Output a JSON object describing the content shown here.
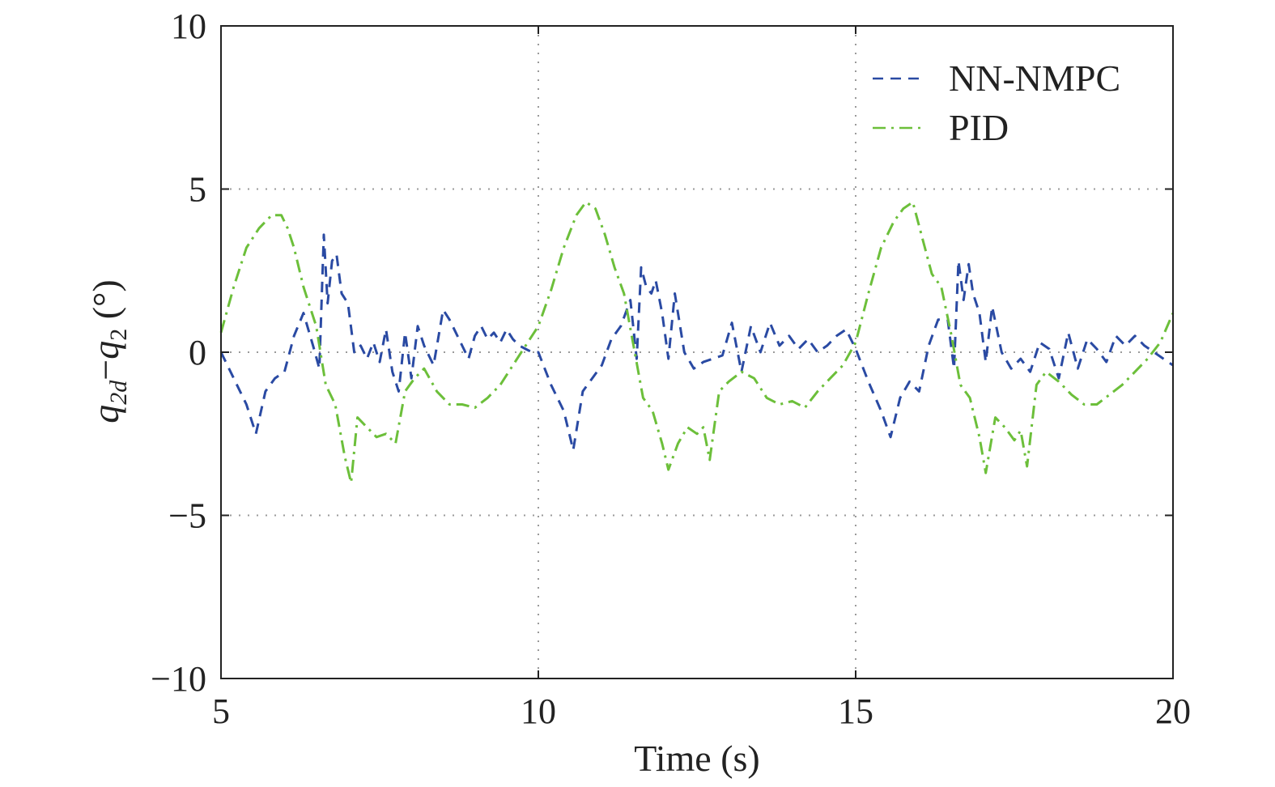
{
  "chart_data": {
    "type": "line",
    "title": "",
    "xlabel": "Time (s)",
    "ylabel": {
      "q1": "q",
      "sub1": "2d",
      "minus": "−",
      "q2": "q",
      "sub2": "2",
      "unit": " (°)"
    },
    "xlim": [
      5,
      20
    ],
    "ylim": [
      -10,
      10
    ],
    "xticks": [
      5,
      10,
      15,
      20
    ],
    "yticks": [
      10,
      5,
      0,
      -5,
      -10
    ],
    "xtick_labels": [
      "5",
      "10",
      "15",
      "20"
    ],
    "ytick_labels": [
      "10",
      "5",
      "0",
      "−5",
      "−10"
    ],
    "grid": true,
    "legend_position": "top-right",
    "series": [
      {
        "name": "NN-NMPC",
        "color": "#2a4aa3",
        "dash": "dashed",
        "x": [
          5.0,
          5.2,
          5.4,
          5.55,
          5.7,
          5.85,
          6.0,
          6.15,
          6.3,
          6.45,
          6.55,
          6.62,
          6.68,
          6.75,
          6.82,
          6.9,
          7.0,
          7.1,
          7.2,
          7.3,
          7.4,
          7.5,
          7.6,
          7.7,
          7.8,
          7.9,
          8.0,
          8.1,
          8.2,
          8.35,
          8.5,
          8.6,
          8.7,
          8.8,
          8.9,
          9.0,
          9.1,
          9.2,
          9.3,
          9.4,
          9.5,
          9.6,
          9.7,
          9.8,
          9.9,
          10.0,
          10.2,
          10.4,
          10.55,
          10.7,
          10.85,
          11.0,
          11.15,
          11.3,
          11.45,
          11.55,
          11.62,
          11.7,
          11.78,
          11.85,
          11.95,
          12.05,
          12.15,
          12.3,
          12.45,
          12.6,
          12.75,
          12.9,
          13.05,
          13.2,
          13.35,
          13.5,
          13.65,
          13.8,
          13.95,
          14.1,
          14.25,
          14.4,
          14.55,
          14.7,
          14.85,
          15.0,
          15.2,
          15.4,
          15.55,
          15.7,
          15.85,
          16.0,
          16.15,
          16.3,
          16.45,
          16.55,
          16.62,
          16.7,
          16.78,
          16.85,
          16.95,
          17.05,
          17.15,
          17.3,
          17.45,
          17.6,
          17.75,
          17.9,
          18.05,
          18.2,
          18.35,
          18.5,
          18.65,
          18.8,
          18.95,
          19.1,
          19.25,
          19.4,
          19.55,
          19.7,
          19.85,
          20.0
        ],
        "y": [
          0.0,
          -0.8,
          -1.6,
          -2.5,
          -1.2,
          -0.8,
          -0.6,
          0.5,
          1.2,
          0.2,
          -0.5,
          3.6,
          1.5,
          2.8,
          3.0,
          1.8,
          1.5,
          0.0,
          0.2,
          -0.2,
          0.3,
          -0.3,
          0.7,
          -0.6,
          -1.2,
          0.6,
          -0.8,
          0.8,
          0.2,
          -0.4,
          1.3,
          1.0,
          0.6,
          0.2,
          -0.2,
          0.5,
          0.8,
          0.4,
          0.6,
          0.3,
          0.7,
          0.4,
          0.2,
          0.1,
          0.0,
          0.0,
          -1.0,
          -1.8,
          -3.0,
          -1.2,
          -0.8,
          -0.4,
          0.4,
          0.8,
          1.6,
          -0.2,
          2.6,
          2.0,
          1.8,
          2.2,
          1.2,
          -0.2,
          1.8,
          0.0,
          -0.5,
          -0.3,
          -0.2,
          -0.1,
          0.9,
          -0.6,
          0.8,
          0.0,
          0.9,
          0.2,
          0.5,
          0.1,
          0.4,
          0.0,
          0.2,
          0.5,
          0.7,
          0.1,
          -0.9,
          -1.8,
          -2.6,
          -1.4,
          -0.9,
          -1.2,
          0.2,
          1.0,
          1.0,
          -0.5,
          2.8,
          1.6,
          2.7,
          1.8,
          1.2,
          -0.3,
          1.4,
          0.0,
          -0.5,
          -0.2,
          -0.6,
          0.3,
          0.1,
          -0.8,
          0.6,
          -0.5,
          0.4,
          0.1,
          -0.3,
          0.5,
          0.2,
          0.5,
          0.2,
          0.0,
          -0.2,
          -0.4
        ]
      },
      {
        "name": "PID",
        "color": "#6cbf3a",
        "dash": "dashdot",
        "x": [
          5.0,
          5.2,
          5.4,
          5.6,
          5.8,
          5.95,
          6.05,
          6.15,
          6.3,
          6.5,
          6.65,
          6.8,
          6.95,
          7.05,
          7.15,
          7.3,
          7.45,
          7.6,
          7.75,
          7.9,
          8.05,
          8.2,
          8.4,
          8.6,
          8.8,
          9.0,
          9.2,
          9.4,
          9.6,
          9.8,
          10.0,
          10.2,
          10.4,
          10.6,
          10.75,
          10.9,
          11.05,
          11.2,
          11.35,
          11.5,
          11.65,
          11.8,
          11.95,
          12.05,
          12.2,
          12.35,
          12.5,
          12.6,
          12.7,
          12.85,
          13.0,
          13.2,
          13.4,
          13.6,
          13.8,
          14.0,
          14.2,
          14.4,
          14.6,
          14.8,
          15.0,
          15.2,
          15.4,
          15.6,
          15.75,
          15.9,
          16.05,
          16.2,
          16.35,
          16.5,
          16.65,
          16.8,
          16.95,
          17.05,
          17.2,
          17.35,
          17.5,
          17.6,
          17.7,
          17.85,
          18.0,
          18.2,
          18.4,
          18.6,
          18.8,
          19.0,
          19.2,
          19.4,
          19.6,
          19.8,
          20.0
        ],
        "y": [
          0.6,
          2.0,
          3.2,
          3.8,
          4.2,
          4.2,
          3.8,
          3.2,
          2.0,
          0.8,
          -1.0,
          -1.6,
          -3.2,
          -4.0,
          -2.0,
          -2.3,
          -2.6,
          -2.5,
          -2.8,
          -1.2,
          -0.8,
          -0.5,
          -1.2,
          -1.6,
          -1.6,
          -1.7,
          -1.4,
          -1.0,
          -0.4,
          0.2,
          0.8,
          1.9,
          3.2,
          4.2,
          4.6,
          4.4,
          3.6,
          2.6,
          1.8,
          0.2,
          -1.4,
          -1.8,
          -2.8,
          -3.6,
          -2.8,
          -2.3,
          -2.5,
          -2.3,
          -3.3,
          -1.2,
          -0.9,
          -0.6,
          -0.8,
          -1.4,
          -1.6,
          -1.5,
          -1.7,
          -1.2,
          -0.8,
          -0.4,
          0.3,
          1.8,
          3.2,
          4.0,
          4.4,
          4.6,
          3.5,
          2.4,
          2.0,
          0.6,
          -1.0,
          -1.4,
          -2.6,
          -3.7,
          -2.0,
          -2.3,
          -2.7,
          -2.4,
          -3.5,
          -1.0,
          -0.6,
          -0.9,
          -1.3,
          -1.6,
          -1.6,
          -1.3,
          -1.0,
          -0.6,
          -0.2,
          0.3,
          1.2
        ]
      }
    ]
  }
}
